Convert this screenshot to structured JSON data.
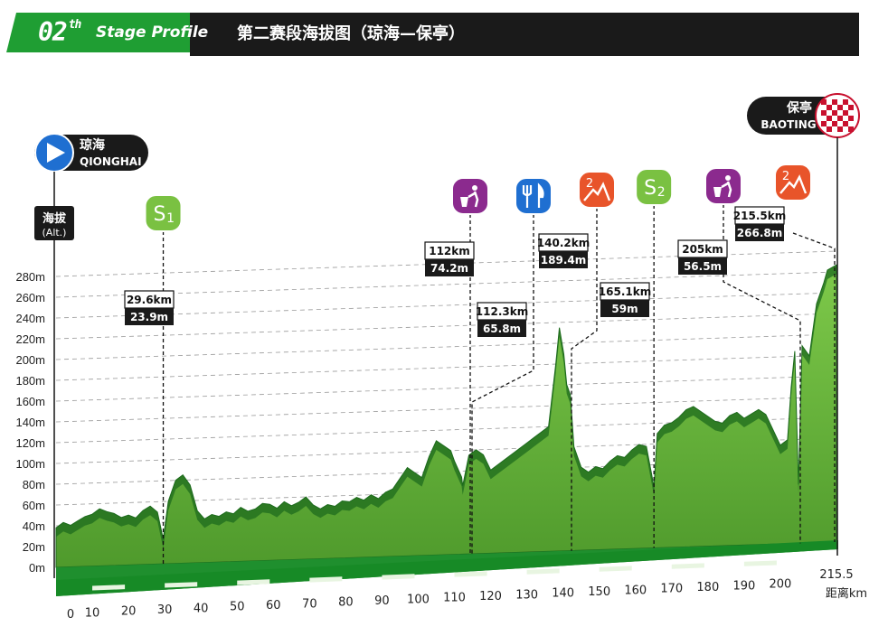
{
  "header": {
    "stage_number": "02",
    "stage_suffix": "th",
    "stage_title": "Stage Profile",
    "title_cn": "第二赛段海拔图（琼海—保亭）"
  },
  "start": {
    "name_cn": "琼海",
    "name_en": "QIONGHAI"
  },
  "finish": {
    "name_cn": "保亭",
    "name_en": "BAOTING"
  },
  "y_axis": {
    "label_cn": "海拔",
    "label_en": "(Alt.)"
  },
  "x_axis": {
    "unit_label": "距离km"
  },
  "colors": {
    "terrain_light": "#6db33f",
    "terrain_dark": "#1d6b1d",
    "base": "#1f8f2e",
    "header_green": "#1f9e33",
    "sprint_green": "#7ac142",
    "feed_blue": "#1f6fd1",
    "climb_orange": "#e8542a",
    "trash_purple": "#8b2a8e"
  },
  "chart_data": {
    "type": "area",
    "xlim": [
      0,
      215.5
    ],
    "ylim": [
      0,
      280
    ],
    "y_ticks": [
      {
        "v": 0,
        "t": "0m"
      },
      {
        "v": 20,
        "t": "20m"
      },
      {
        "v": 40,
        "t": "40m"
      },
      {
        "v": 60,
        "t": "60m"
      },
      {
        "v": 80,
        "t": "80m"
      },
      {
        "v": 100,
        "t": "100m"
      },
      {
        "v": 120,
        "t": "120m"
      },
      {
        "v": 140,
        "t": "140m"
      },
      {
        "v": 160,
        "t": "160m"
      },
      {
        "v": 180,
        "t": "180m"
      },
      {
        "v": 200,
        "t": "200m"
      },
      {
        "v": 220,
        "t": "220m"
      },
      {
        "v": 240,
        "t": "240m"
      },
      {
        "v": 260,
        "t": "260m"
      },
      {
        "v": 280,
        "t": "280m"
      }
    ],
    "x_ticks": [
      {
        "v": 0,
        "t": "0"
      },
      {
        "v": 10,
        "t": "10"
      },
      {
        "v": 20,
        "t": "20"
      },
      {
        "v": 30,
        "t": "30"
      },
      {
        "v": 40,
        "t": "40"
      },
      {
        "v": 50,
        "t": "50"
      },
      {
        "v": 60,
        "t": "60"
      },
      {
        "v": 70,
        "t": "70"
      },
      {
        "v": 80,
        "t": "80"
      },
      {
        "v": 90,
        "t": "90"
      },
      {
        "v": 100,
        "t": "100"
      },
      {
        "v": 110,
        "t": "110"
      },
      {
        "v": 120,
        "t": "120"
      },
      {
        "v": 130,
        "t": "130"
      },
      {
        "v": 140,
        "t": "140"
      },
      {
        "v": 150,
        "t": "150"
      },
      {
        "v": 160,
        "t": "160"
      },
      {
        "v": 170,
        "t": "170"
      },
      {
        "v": 180,
        "t": "180"
      },
      {
        "v": 190,
        "t": "190"
      },
      {
        "v": 200,
        "t": "200"
      },
      {
        "v": 215.5,
        "t": "215.5"
      }
    ],
    "profile": [
      [
        0,
        38
      ],
      [
        2,
        43
      ],
      [
        4,
        40
      ],
      [
        6,
        44
      ],
      [
        8,
        48
      ],
      [
        10,
        50
      ],
      [
        12,
        55
      ],
      [
        14,
        52
      ],
      [
        16,
        50
      ],
      [
        18,
        46
      ],
      [
        20,
        48
      ],
      [
        22,
        45
      ],
      [
        24,
        52
      ],
      [
        26,
        56
      ],
      [
        28,
        50
      ],
      [
        29.6,
        23.9
      ],
      [
        31,
        60
      ],
      [
        33,
        80
      ],
      [
        35,
        85
      ],
      [
        37,
        75
      ],
      [
        39,
        50
      ],
      [
        41,
        42
      ],
      [
        43,
        46
      ],
      [
        45,
        44
      ],
      [
        47,
        48
      ],
      [
        49,
        46
      ],
      [
        51,
        52
      ],
      [
        53,
        48
      ],
      [
        55,
        50
      ],
      [
        57,
        55
      ],
      [
        59,
        54
      ],
      [
        61,
        50
      ],
      [
        63,
        56
      ],
      [
        65,
        52
      ],
      [
        67,
        55
      ],
      [
        69,
        60
      ],
      [
        71,
        52
      ],
      [
        73,
        48
      ],
      [
        75,
        52
      ],
      [
        77,
        50
      ],
      [
        79,
        55
      ],
      [
        81,
        54
      ],
      [
        83,
        58
      ],
      [
        85,
        55
      ],
      [
        87,
        60
      ],
      [
        89,
        56
      ],
      [
        91,
        62
      ],
      [
        93,
        65
      ],
      [
        95,
        75
      ],
      [
        97,
        85
      ],
      [
        99,
        80
      ],
      [
        101,
        75
      ],
      [
        103,
        95
      ],
      [
        105,
        110
      ],
      [
        107,
        105
      ],
      [
        109,
        100
      ],
      [
        110,
        90
      ],
      [
        112,
        74.2
      ],
      [
        112.3,
        65.8
      ],
      [
        114,
        95
      ],
      [
        116,
        100
      ],
      [
        118,
        95
      ],
      [
        120,
        80
      ],
      [
        122,
        85
      ],
      [
        124,
        90
      ],
      [
        126,
        95
      ],
      [
        128,
        100
      ],
      [
        130,
        105
      ],
      [
        132,
        110
      ],
      [
        134,
        115
      ],
      [
        136,
        120
      ],
      [
        138,
        180
      ],
      [
        139,
        215
      ],
      [
        140.2,
        189.4
      ],
      [
        141,
        160
      ],
      [
        142,
        150
      ],
      [
        143,
        100
      ],
      [
        145,
        80
      ],
      [
        147,
        75
      ],
      [
        149,
        80
      ],
      [
        151,
        78
      ],
      [
        153,
        85
      ],
      [
        155,
        90
      ],
      [
        157,
        88
      ],
      [
        159,
        95
      ],
      [
        161,
        100
      ],
      [
        163,
        98
      ],
      [
        165.1,
        59
      ],
      [
        166,
        110
      ],
      [
        168,
        118
      ],
      [
        170,
        120
      ],
      [
        172,
        125
      ],
      [
        174,
        132
      ],
      [
        176,
        135
      ],
      [
        178,
        130
      ],
      [
        180,
        125
      ],
      [
        182,
        120
      ],
      [
        184,
        118
      ],
      [
        186,
        125
      ],
      [
        188,
        128
      ],
      [
        190,
        122
      ],
      [
        192,
        126
      ],
      [
        194,
        130
      ],
      [
        196,
        125
      ],
      [
        198,
        110
      ],
      [
        200,
        95
      ],
      [
        202,
        100
      ],
      [
        203,
        150
      ],
      [
        204,
        185
      ],
      [
        205,
        56.5
      ],
      [
        206,
        190
      ],
      [
        208,
        180
      ],
      [
        210,
        230
      ],
      [
        212,
        250
      ],
      [
        213,
        262
      ],
      [
        215.5,
        266.8
      ]
    ]
  },
  "points": [
    {
      "km": 29.6,
      "icon": "sprint",
      "label_km": "29.6km",
      "label_alt": "23.9m"
    },
    {
      "km": 112,
      "icon": "trash",
      "label_km": "112km",
      "label_alt": "74.2m"
    },
    {
      "km": 112.3,
      "icon": "feed",
      "label_km": "112.3km",
      "label_alt": "65.8m"
    },
    {
      "km": 140.2,
      "icon": "climb",
      "label_km": "140.2km",
      "label_alt": "189.4m"
    },
    {
      "km": 165.1,
      "icon": "sprint",
      "label_km": "165.1km",
      "label_alt": "59m"
    },
    {
      "km": 205,
      "icon": "trash",
      "label_km": "205km",
      "label_alt": "56.5m"
    },
    {
      "km": 215.5,
      "icon": "climb",
      "label_km": "215.5km",
      "label_alt": "266.8m"
    }
  ],
  "icons": {
    "sprint": "S",
    "sprint_sub": "1",
    "sprint2_sub": "2",
    "climb_cat": "2"
  }
}
